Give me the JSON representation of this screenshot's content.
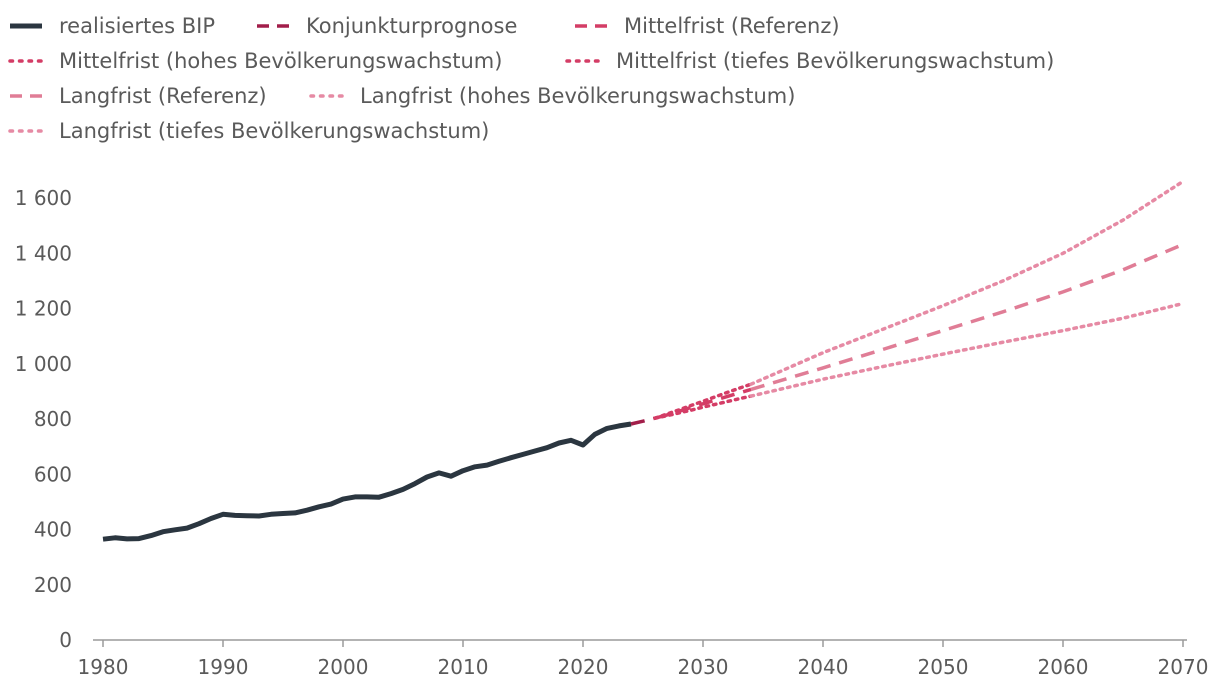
{
  "chart_data": {
    "type": "line",
    "title": "",
    "xlabel": "",
    "ylabel": "",
    "xlim": [
      1980,
      2070
    ],
    "ylim": [
      0,
      1600
    ],
    "x_ticks": [
      1980,
      1990,
      2000,
      2010,
      2020,
      2030,
      2040,
      2050,
      2060,
      2070
    ],
    "y_ticks": [
      0,
      200,
      400,
      600,
      800,
      1000,
      1200,
      1400,
      1600
    ],
    "y_tick_labels": [
      "0",
      "200",
      "400",
      "600",
      "800",
      "1 000",
      "1 200",
      "1 400",
      "1 600"
    ],
    "grid": false,
    "legend_position": "top-left",
    "series": [
      {
        "name": "realisiertes BIP",
        "color": "#2b3640",
        "style": "solid",
        "x": [
          1980,
          1981,
          1982,
          1983,
          1984,
          1985,
          1986,
          1987,
          1988,
          1989,
          1990,
          1991,
          1992,
          1993,
          1994,
          1995,
          1996,
          1997,
          1998,
          1999,
          2000,
          2001,
          2002,
          2003,
          2004,
          2005,
          2006,
          2007,
          2008,
          2009,
          2010,
          2011,
          2012,
          2013,
          2014,
          2015,
          2016,
          2017,
          2018,
          2019,
          2020,
          2021,
          2022,
          2023,
          2024
        ],
        "y": [
          365,
          370,
          366,
          367,
          378,
          392,
          399,
          405,
          421,
          440,
          455,
          451,
          450,
          449,
          455,
          458,
          460,
          470,
          482,
          492,
          510,
          518,
          518,
          517,
          530,
          545,
          566,
          590,
          605,
          593,
          613,
          627,
          633,
          647,
          660,
          672,
          684,
          696,
          713,
          723,
          706,
          745,
          766,
          775,
          782
        ]
      },
      {
        "name": "Konjunkturprognose",
        "color": "#a21e4a",
        "style": "dashed",
        "x": [
          2024,
          2025,
          2026
        ],
        "y": [
          782,
          792,
          803
        ]
      },
      {
        "name": "Mittelfrist (Referenz)",
        "color": "#d43d66",
        "style": "dashed",
        "x": [
          2026,
          2027,
          2028,
          2029,
          2030,
          2031,
          2032,
          2033,
          2034
        ],
        "y": [
          803,
          815,
          828,
          842,
          855,
          868,
          881,
          894,
          907
        ]
      },
      {
        "name": "Mittelfrist (hohes Bevölkerungswachstum)",
        "color": "#d43d66",
        "style": "dotted",
        "x": [
          2026,
          2027,
          2028,
          2029,
          2030,
          2031,
          2032,
          2033,
          2034
        ],
        "y": [
          803,
          818,
          833,
          849,
          864,
          880,
          896,
          911,
          926
        ]
      },
      {
        "name": "Mittelfrist (tiefes Bevölkerungswachstum)",
        "color": "#d43d66",
        "style": "dotted",
        "x": [
          2026,
          2027,
          2028,
          2029,
          2030,
          2031,
          2032,
          2033,
          2034
        ],
        "y": [
          803,
          812,
          822,
          832,
          843,
          853,
          863,
          873,
          883
        ]
      },
      {
        "name": "Langfrist (Referenz)",
        "color": "#e07d96",
        "style": "dashed",
        "x": [
          2034,
          2040,
          2045,
          2050,
          2055,
          2060,
          2065,
          2070
        ],
        "y": [
          907,
          985,
          1052,
          1120,
          1188,
          1260,
          1340,
          1432
        ]
      },
      {
        "name": "Langfrist (hohes Bevölkerungswachstum)",
        "color": "#e68aa4",
        "style": "dotted",
        "x": [
          2034,
          2040,
          2045,
          2050,
          2055,
          2060,
          2065,
          2070
        ],
        "y": [
          926,
          1040,
          1125,
          1210,
          1300,
          1400,
          1520,
          1660
        ]
      },
      {
        "name": "Langfrist (tiefes Bevölkerungswachstum)",
        "color": "#e68aa4",
        "style": "dotted",
        "x": [
          2034,
          2040,
          2045,
          2050,
          2055,
          2060,
          2065,
          2070
        ],
        "y": [
          883,
          944,
          990,
          1035,
          1078,
          1120,
          1165,
          1218
        ]
      }
    ]
  }
}
